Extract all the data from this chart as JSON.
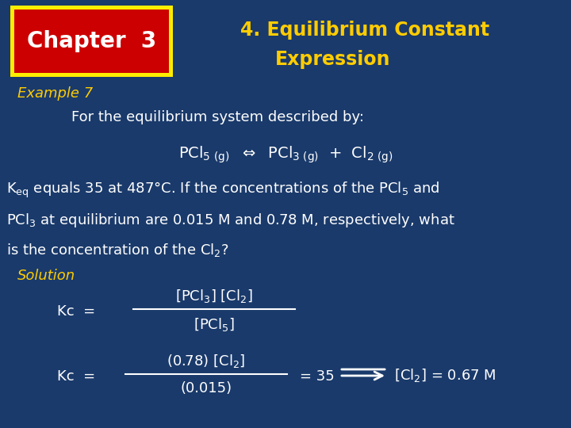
{
  "bg_color": "#1a3a6b",
  "chapter_box_bg": "#cc0000",
  "chapter_box_border": "#ffee00",
  "chapter_text": "Chapter  3",
  "chapter_text_color": "#ffffff",
  "title_line1": "4. Equilibrium Constant",
  "title_line2": "Expression",
  "title_color": "#ffcc00",
  "example_label": "Example 7",
  "example_color": "#ffcc00",
  "body_color": "#ffffff",
  "solution_color": "#ffcc00",
  "figsize": [
    7.2,
    5.4
  ],
  "dpi": 100
}
